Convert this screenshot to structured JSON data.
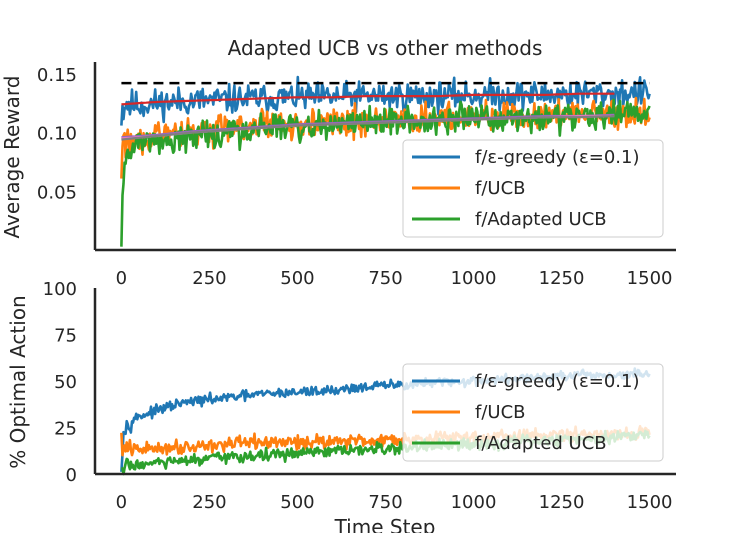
{
  "chart_data": [
    {
      "type": "line",
      "title": "Adapted UCB vs other methods",
      "xlabel": "",
      "ylabel": "Average Reward",
      "xlim": [
        -75,
        1575
      ],
      "ylim": [
        0.0,
        0.16
      ],
      "xticks": [
        0,
        250,
        500,
        750,
        1000,
        1250,
        1500
      ],
      "xtick_labels": [
        "0",
        "250",
        "500",
        "750",
        "1000",
        "1250",
        "1500"
      ],
      "yticks": [
        0.05,
        0.1,
        0.15
      ],
      "ytick_labels": [
        "0.05",
        "0.10",
        "0.15"
      ],
      "reference_line": {
        "y": 0.142,
        "style": "dashed",
        "color": "#000000"
      },
      "legend": {
        "placement": "lower-right"
      },
      "grid": false,
      "series": [
        {
          "name": "f/ε-greedy (ε=0.1)",
          "color": "#1f77b4",
          "x": [
            0,
            10,
            50,
            100,
            200,
            300,
            400,
            500,
            600,
            700,
            800,
            900,
            1000,
            1100,
            1200,
            1300,
            1400,
            1500
          ],
          "values": [
            0.118,
            0.126,
            0.123,
            0.125,
            0.127,
            0.128,
            0.129,
            0.13,
            0.13,
            0.131,
            0.131,
            0.131,
            0.132,
            0.132,
            0.132,
            0.133,
            0.133,
            0.134
          ],
          "noise": 0.006
        },
        {
          "name": "f/UCB",
          "color": "#ff7f0e",
          "x": [
            0,
            10,
            50,
            100,
            200,
            300,
            400,
            500,
            600,
            700,
            800,
            900,
            1000,
            1100,
            1200,
            1300,
            1400,
            1500
          ],
          "values": [
            0.08,
            0.092,
            0.095,
            0.097,
            0.101,
            0.104,
            0.106,
            0.107,
            0.108,
            0.109,
            0.11,
            0.111,
            0.112,
            0.113,
            0.114,
            0.115,
            0.116,
            0.116
          ],
          "noise": 0.006
        },
        {
          "name": "f/Adapted UCB",
          "color": "#2ca02c",
          "x": [
            0,
            5,
            10,
            30,
            50,
            100,
            200,
            300,
            400,
            500,
            600,
            700,
            800,
            900,
            1000,
            1100,
            1200,
            1300,
            1400,
            1500
          ],
          "values": [
            0.01,
            0.06,
            0.075,
            0.085,
            0.088,
            0.092,
            0.097,
            0.101,
            0.103,
            0.105,
            0.107,
            0.109,
            0.11,
            0.111,
            0.112,
            0.113,
            0.114,
            0.115,
            0.115,
            0.116
          ],
          "noise": 0.006
        }
      ],
      "smoothed_overlays": [
        {
          "color": "#d62728",
          "x": [
            0,
            100,
            200,
            300,
            400,
            500,
            600,
            700,
            800,
            900,
            1000,
            1100,
            1200,
            1300,
            1400
          ],
          "values": [
            0.124,
            0.126,
            0.127,
            0.128,
            0.129,
            0.13,
            0.13,
            0.131,
            0.131,
            0.131,
            0.132,
            0.132,
            0.132,
            0.133,
            0.133
          ]
        },
        {
          "color": "#9467bd",
          "x": [
            0,
            100,
            200,
            300,
            400,
            500,
            600,
            700,
            800,
            900,
            1000,
            1100,
            1200,
            1300,
            1400
          ],
          "values": [
            0.096,
            0.098,
            0.101,
            0.103,
            0.105,
            0.107,
            0.108,
            0.109,
            0.11,
            0.111,
            0.112,
            0.113,
            0.114,
            0.114,
            0.115
          ]
        },
        {
          "color": "#e377c2",
          "x": [
            0,
            100,
            200,
            300,
            400,
            500,
            600,
            700,
            800,
            900,
            1000,
            1100,
            1200,
            1300,
            1400
          ],
          "values": [
            0.095,
            0.097,
            0.1,
            0.102,
            0.104,
            0.106,
            0.107,
            0.108,
            0.109,
            0.11,
            0.111,
            0.112,
            0.113,
            0.114,
            0.114
          ]
        },
        {
          "color": "#7f7f7f",
          "x": [
            0,
            100,
            200,
            300,
            400,
            500,
            600,
            700,
            800,
            900,
            1000,
            1100,
            1200,
            1300,
            1400
          ],
          "values": [
            0.094,
            0.097,
            0.1,
            0.102,
            0.104,
            0.106,
            0.107,
            0.108,
            0.109,
            0.11,
            0.111,
            0.112,
            0.113,
            0.113,
            0.114
          ]
        }
      ]
    },
    {
      "type": "line",
      "title": "",
      "xlabel": "Time Step",
      "ylabel": "% Optimal Action",
      "xlim": [
        -75,
        1575
      ],
      "ylim": [
        0,
        100
      ],
      "xticks": [
        0,
        250,
        500,
        750,
        1000,
        1250,
        1500
      ],
      "xtick_labels": [
        "0",
        "250",
        "500",
        "750",
        "1000",
        "1250",
        "1500"
      ],
      "yticks": [
        0,
        25,
        50,
        75,
        100
      ],
      "ytick_labels": [
        "0",
        "25",
        "50",
        "75",
        "100"
      ],
      "legend": {
        "placement": "lower-right"
      },
      "grid": false,
      "series": [
        {
          "name": "f/ε-greedy (ε=0.1)",
          "color": "#1f77b4",
          "x": [
            0,
            5,
            15,
            30,
            50,
            100,
            150,
            200,
            300,
            400,
            500,
            600,
            700,
            800,
            900,
            1000,
            1100,
            1200,
            1300,
            1400,
            1500
          ],
          "values": [
            5,
            22,
            26,
            29,
            31,
            34,
            37,
            39,
            41,
            43,
            44,
            45,
            47,
            48,
            49,
            50,
            51,
            52,
            53,
            53,
            54
          ],
          "noise": 1.3
        },
        {
          "name": "f/UCB",
          "color": "#ff7f0e",
          "x": [
            0,
            5,
            15,
            50,
            100,
            200,
            300,
            400,
            500,
            600,
            700,
            800,
            900,
            1000,
            1100,
            1200,
            1300,
            1400,
            1500
          ],
          "values": [
            18,
            14,
            13,
            13,
            14,
            15,
            16,
            17,
            17,
            18,
            18,
            19,
            19,
            20,
            20,
            21,
            21,
            22,
            22
          ],
          "noise": 1.8
        },
        {
          "name": "f/Adapted UCB",
          "color": "#2ca02c",
          "x": [
            0,
            5,
            15,
            50,
            100,
            200,
            300,
            400,
            500,
            600,
            700,
            800,
            900,
            1000,
            1100,
            1200,
            1300,
            1400,
            1500
          ],
          "values": [
            1,
            3,
            4,
            5,
            6,
            7,
            9,
            10,
            11,
            12,
            13,
            14,
            15,
            16,
            17,
            18,
            19,
            20,
            22
          ],
          "noise": 1.6
        }
      ],
      "smoothed_overlays": []
    }
  ]
}
